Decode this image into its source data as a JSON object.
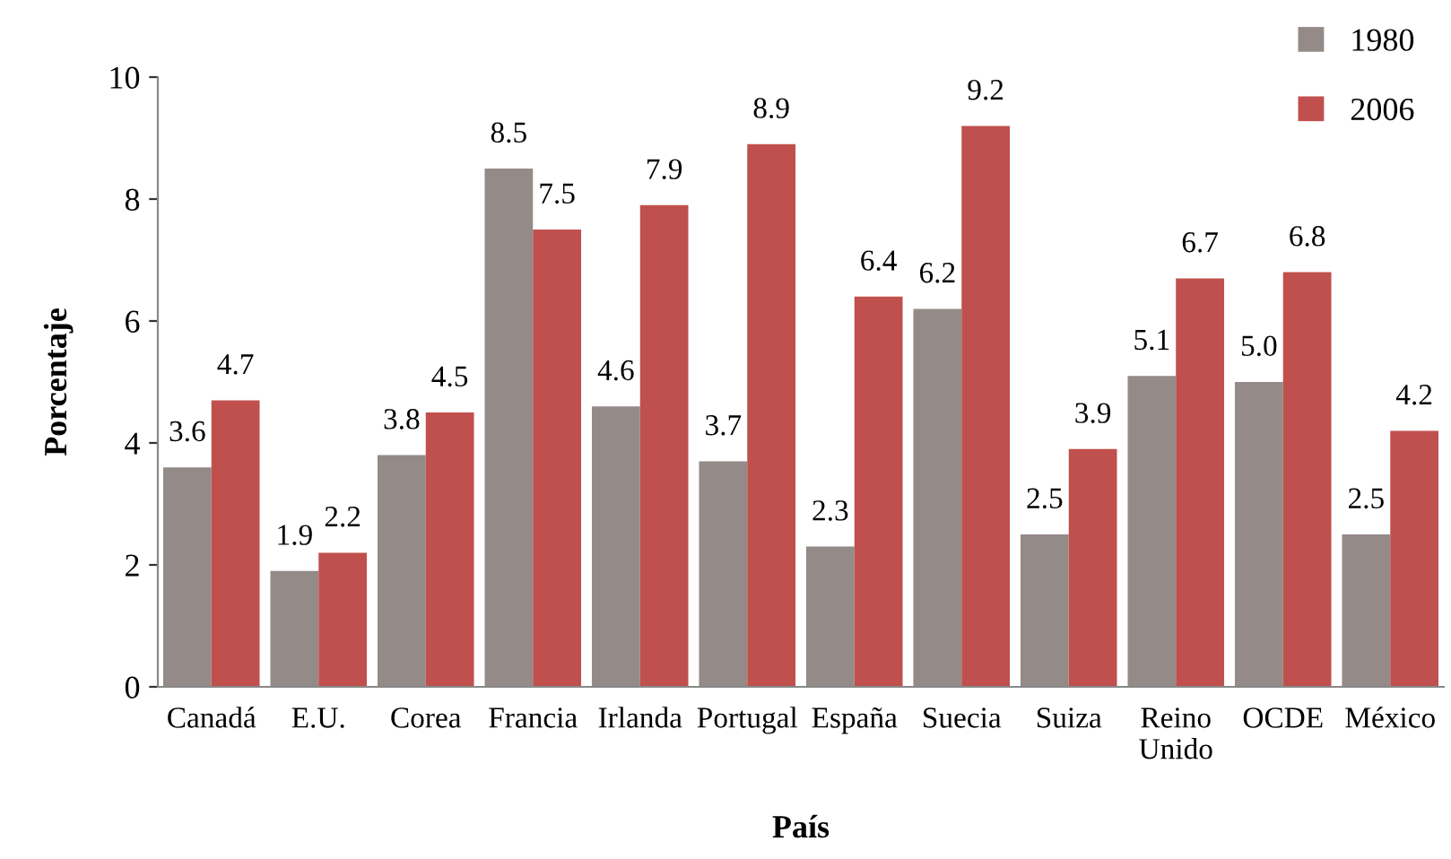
{
  "chart_data": {
    "type": "bar",
    "xlabel": "País",
    "ylabel": "Porcentaje",
    "categories": [
      "Canadá",
      "E.U.",
      "Corea",
      "Francia",
      "Irlanda",
      "Portugal",
      "España",
      "Suecia",
      "Suiza",
      "Reino\nUnido",
      "OCDE",
      "México"
    ],
    "series": [
      {
        "name": "1980",
        "color": "#948a88",
        "values": [
          3.6,
          1.9,
          3.8,
          8.5,
          4.6,
          3.7,
          2.3,
          6.2,
          2.5,
          5.1,
          5.0,
          2.5
        ],
        "value_labels": [
          "3.6",
          "1.9",
          "3.8",
          "8.5",
          "4.6",
          "3.7",
          "2.3",
          "6.2",
          "2.5",
          "5.1",
          "5.0",
          "2.5"
        ]
      },
      {
        "name": "2006",
        "color": "#c0504d",
        "values": [
          4.7,
          2.2,
          4.5,
          7.5,
          7.9,
          8.9,
          6.4,
          9.2,
          3.9,
          6.7,
          6.8,
          4.2
        ],
        "value_labels": [
          "4.7",
          "2.2",
          "4.5",
          "7.5",
          "7.9",
          "8.9",
          "6.4",
          "9.2",
          "3.9",
          "6.7",
          "6.8",
          "4.2"
        ]
      }
    ],
    "ylim": [
      0,
      10
    ],
    "yticks": [
      0,
      2,
      4,
      6,
      8,
      10
    ],
    "grid": false,
    "legend": "top right"
  }
}
